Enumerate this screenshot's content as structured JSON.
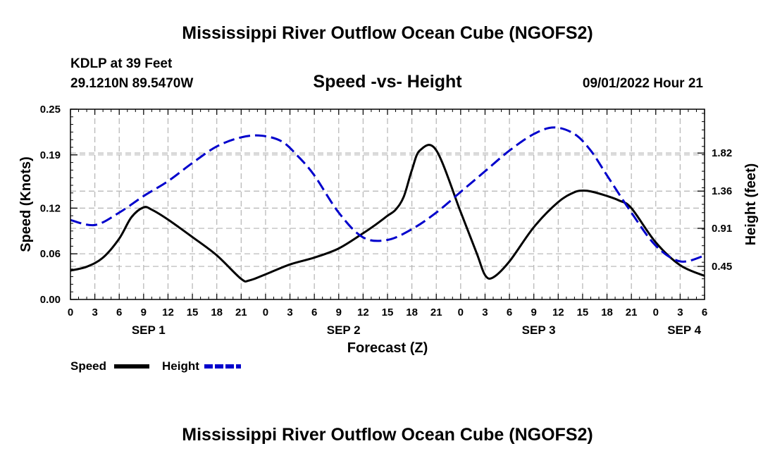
{
  "chart_data": {
    "type": "line",
    "title": "Mississippi River Outflow Ocean Cube (NGOFS2)",
    "footer_title": "Mississippi River Outflow Ocean Cube (NGOFS2)",
    "station": "KDLP at 39 Feet",
    "location": "29.1210N  89.5470W",
    "subtitle": "Speed -vs- Height",
    "timestamp": "09/01/2022 Hour 21",
    "xlabel": "Forecast (Z)",
    "ylabel_left": "Speed (Knots)",
    "ylabel_right": "Height (feet)",
    "x_hour_range": [
      0,
      78
    ],
    "x_ticks": [
      {
        "h": 0,
        "label": "0"
      },
      {
        "h": 3,
        "label": "3"
      },
      {
        "h": 6,
        "label": "6"
      },
      {
        "h": 9,
        "label": "9"
      },
      {
        "h": 12,
        "label": "12"
      },
      {
        "h": 15,
        "label": "15"
      },
      {
        "h": 18,
        "label": "18"
      },
      {
        "h": 21,
        "label": "21"
      },
      {
        "h": 24,
        "label": "0"
      },
      {
        "h": 27,
        "label": "3"
      },
      {
        "h": 30,
        "label": "6"
      },
      {
        "h": 33,
        "label": "9"
      },
      {
        "h": 36,
        "label": "12"
      },
      {
        "h": 39,
        "label": "15"
      },
      {
        "h": 42,
        "label": "18"
      },
      {
        "h": 45,
        "label": "21"
      },
      {
        "h": 48,
        "label": "0"
      },
      {
        "h": 51,
        "label": "3"
      },
      {
        "h": 54,
        "label": "6"
      },
      {
        "h": 57,
        "label": "9"
      },
      {
        "h": 60,
        "label": "12"
      },
      {
        "h": 63,
        "label": "15"
      },
      {
        "h": 66,
        "label": "18"
      },
      {
        "h": 69,
        "label": "21"
      },
      {
        "h": 72,
        "label": "0"
      },
      {
        "h": 75,
        "label": "3"
      },
      {
        "h": 78,
        "label": "6"
      }
    ],
    "date_labels": [
      {
        "h": 9.6,
        "label": "SEP 1"
      },
      {
        "h": 33.6,
        "label": "SEP 2"
      },
      {
        "h": 57.6,
        "label": "SEP 3"
      },
      {
        "h": 75.5,
        "label": "SEP 4"
      }
    ],
    "left_axis": {
      "ylim": [
        0,
        0.25
      ],
      "ticks": [
        0.0,
        0.06,
        0.12,
        0.19,
        0.25
      ],
      "tick_labels": [
        "0.00",
        "0.06",
        "0.12",
        "0.19",
        "0.25"
      ]
    },
    "right_axis": {
      "ylim": [
        0.05,
        2.35
      ],
      "ticks": [
        0.45,
        0.91,
        1.36,
        1.82
      ],
      "tick_labels": [
        "0.45",
        "0.91",
        "1.36",
        "1.82"
      ]
    },
    "series": [
      {
        "name": "Speed",
        "axis": "left",
        "color": "#000000",
        "dashed": false,
        "hours": [
          0,
          2,
          4,
          6,
          7.5,
          9,
          10,
          12,
          15,
          18,
          21,
          22,
          24,
          27,
          30,
          33,
          36,
          37.5,
          39,
          40,
          41,
          42,
          43,
          45,
          48,
          50,
          51,
          52,
          54,
          57,
          60,
          62,
          63,
          64,
          66,
          67.5,
          69,
          72,
          75,
          78
        ],
        "values": [
          0.038,
          0.043,
          0.055,
          0.08,
          0.108,
          0.121,
          0.118,
          0.105,
          0.082,
          0.058,
          0.027,
          0.025,
          0.033,
          0.046,
          0.055,
          0.067,
          0.087,
          0.098,
          0.11,
          0.118,
          0.135,
          0.17,
          0.196,
          0.196,
          0.115,
          0.06,
          0.032,
          0.029,
          0.05,
          0.095,
          0.128,
          0.141,
          0.143,
          0.142,
          0.136,
          0.13,
          0.12,
          0.075,
          0.045,
          0.031
        ]
      },
      {
        "name": "Height",
        "axis": "right",
        "color": "#0000cc",
        "dashed": true,
        "hours": [
          0,
          3,
          6,
          9,
          12,
          15,
          18,
          21,
          23.5,
          26,
          28,
          30,
          33,
          36,
          39,
          42,
          45,
          48,
          51,
          54,
          57,
          59.5,
          62,
          64,
          66,
          69,
          72,
          75,
          78
        ],
        "values": [
          1.01,
          0.95,
          1.1,
          1.3,
          1.48,
          1.7,
          1.9,
          2.01,
          2.03,
          1.96,
          1.78,
          1.55,
          1.1,
          0.8,
          0.77,
          0.9,
          1.1,
          1.35,
          1.6,
          1.85,
          2.05,
          2.13,
          2.05,
          1.85,
          1.55,
          1.1,
          0.7,
          0.51,
          0.58
        ]
      }
    ],
    "legend": [
      {
        "label": "Speed",
        "color": "#000000",
        "dashed": false
      },
      {
        "label": "Height",
        "color": "#0000cc",
        "dashed": true
      }
    ]
  }
}
